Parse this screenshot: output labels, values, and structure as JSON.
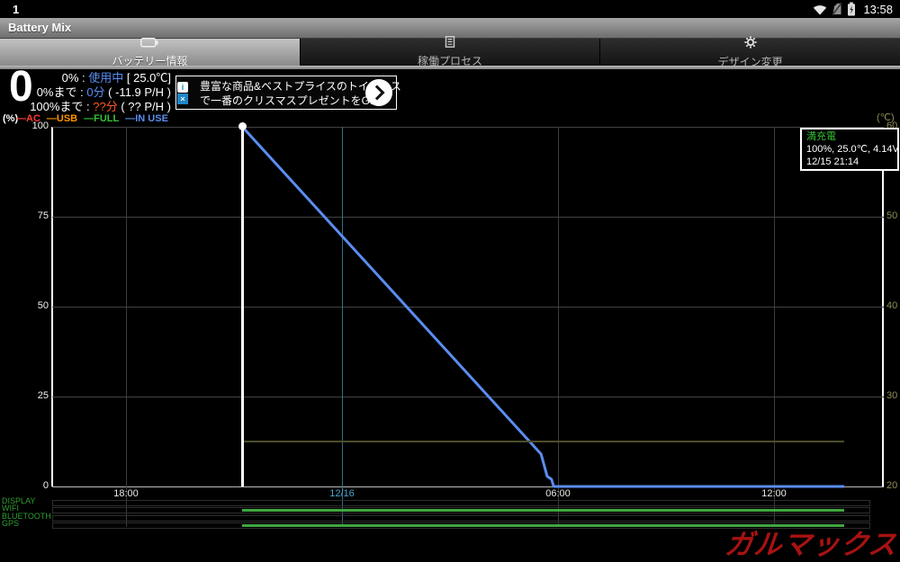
{
  "status_bar": {
    "notification_count": "1",
    "time": "13:58"
  },
  "app_bar": {
    "title": "Battery Mix"
  },
  "tabs": [
    {
      "label": "バッテリー情報",
      "active": true
    },
    {
      "label": "稼働プロセス",
      "active": false
    },
    {
      "label": "デザイン変更",
      "active": false
    }
  ],
  "battery_info": {
    "level": "0",
    "lines": [
      {
        "prefix": "0% : ",
        "accent": "使用中",
        "accent_color": "#5b8df0",
        "suffix": " [ 25.0℃]"
      },
      {
        "prefix": "0%まで : ",
        "accent": "0分",
        "accent_color": "#5b8df0",
        "suffix": " ( -11.9 P/H )"
      },
      {
        "prefix": "100%まで : ",
        "accent": "??分",
        "accent_color": "#ff5a1e",
        "suffix": " ( ?? P/H )"
      }
    ]
  },
  "ad": {
    "line1": "豊富な商品&ベストプライスのトイザらス",
    "line2": "で一番のクリスマスプレゼントをGET!",
    "info_glyph": "i",
    "close_glyph": "×"
  },
  "legend": {
    "y_left_unit": "(%)",
    "y_right_unit": "(℃)",
    "items": [
      {
        "label": "AC",
        "color": "#ff3b30"
      },
      {
        "label": "USB",
        "color": "#ff9500"
      },
      {
        "label": "FULL",
        "color": "#35c435"
      },
      {
        "label": "IN USE",
        "color": "#5b8df0"
      }
    ]
  },
  "annotation": {
    "title": "満充電",
    "title_color": "#35c435",
    "line1": "100%, 25.0℃, 4.14V",
    "line2": "12/15 21:14"
  },
  "chart_data": {
    "type": "line",
    "x_axis": {
      "range_hours": [
        15.95,
        39.05
      ],
      "ticks": [
        {
          "label": "18:00",
          "hour": 18,
          "color": "#e8e8e8",
          "line_color": "#3c3c3c"
        },
        {
          "label": "12/16",
          "hour": 24,
          "color": "#4aa3cc",
          "line_color": "#2e6f93"
        },
        {
          "label": "06:00",
          "hour": 30,
          "color": "#e8e8e8",
          "line_color": "#3c3c3c"
        },
        {
          "label": "12:00",
          "hour": 36,
          "color": "#e8e8e8",
          "line_color": "#3c3c3c"
        }
      ]
    },
    "y_left": {
      "label": "(%)",
      "range": [
        0,
        100
      ],
      "ticks": [
        100,
        75,
        50,
        25,
        0
      ]
    },
    "y_right": {
      "label": "(℃)",
      "range": [
        20,
        60
      ],
      "ticks": [
        60,
        50,
        40,
        30,
        20
      ]
    },
    "series": [
      {
        "name": "in-use-battery-percent",
        "axis": "left",
        "color": "#5b8df0",
        "width": 3,
        "points": [
          [
            21.23,
            100
          ],
          [
            29.53,
            9
          ],
          [
            29.7,
            2.8
          ],
          [
            29.82,
            2
          ],
          [
            29.88,
            0
          ],
          [
            37.95,
            0
          ]
        ]
      },
      {
        "name": "temperature",
        "axis": "right",
        "color": "#4e4e2a",
        "width": 2,
        "points": [
          [
            21.23,
            25
          ],
          [
            37.95,
            25
          ]
        ]
      }
    ],
    "full_charge_marker": {
      "hour": 21.23,
      "color": "#ffffff"
    },
    "events": [
      {
        "label": "DISPLAY",
        "segments": []
      },
      {
        "label": "WIFI",
        "segments": [
          [
            21.23,
            37.95
          ]
        ]
      },
      {
        "label": "BLUETOOTH",
        "segments": []
      },
      {
        "label": "GPS",
        "segments": [
          [
            21.23,
            37.95
          ]
        ]
      }
    ]
  },
  "watermark": {
    "text": "ガルマックス",
    "color": "#a81212"
  }
}
